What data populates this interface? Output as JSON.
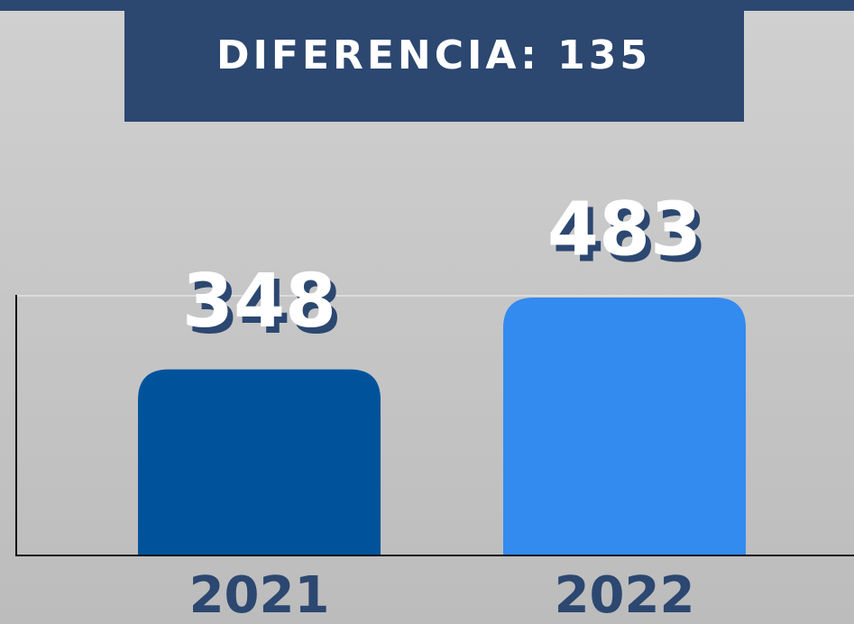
{
  "chart_data": {
    "type": "bar",
    "title": "DIFERENCIA: 135",
    "categories": [
      "2021",
      "2022"
    ],
    "series": [
      {
        "name": null,
        "values": [
          348,
          483
        ],
        "colors": [
          "#00539a",
          "#338bf0"
        ]
      }
    ]
  }
}
